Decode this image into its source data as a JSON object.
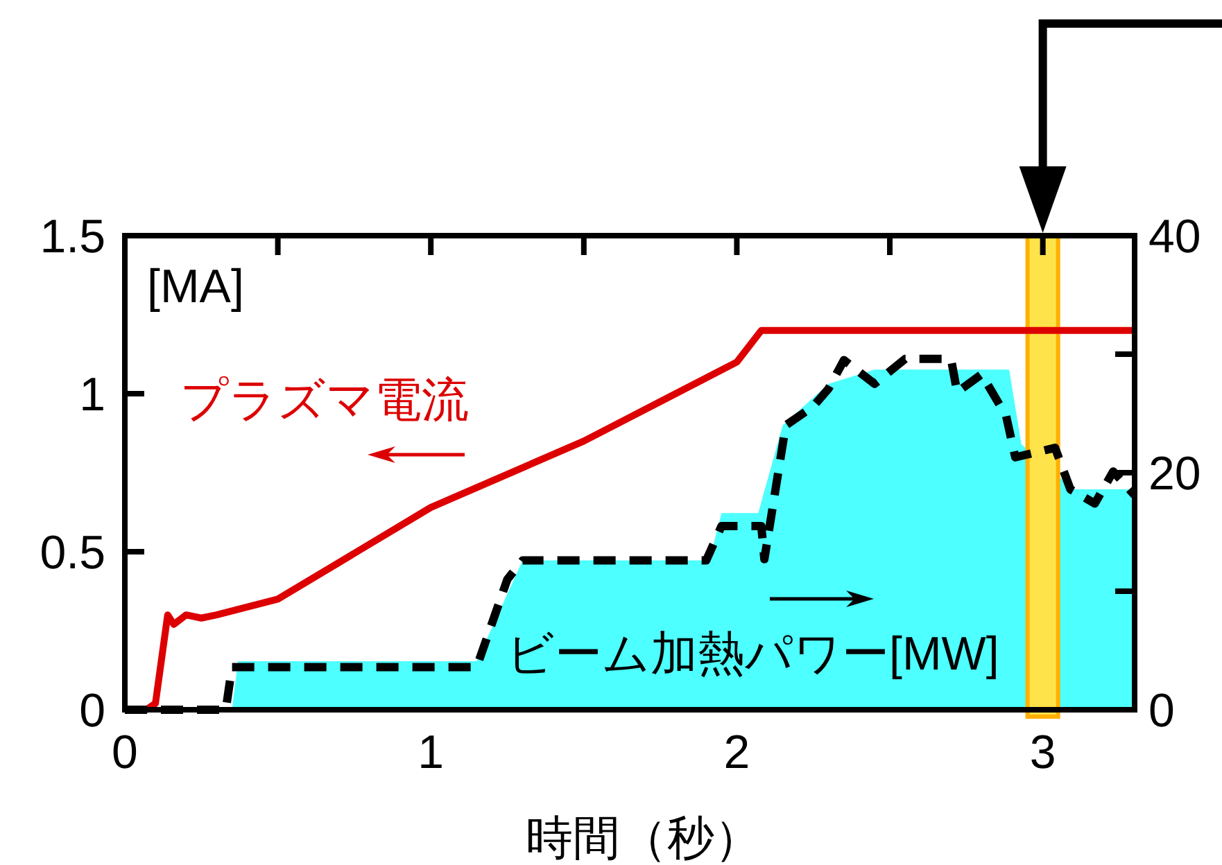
{
  "chart_data": {
    "type": "line",
    "xlabel": "時間（秒）",
    "ylabel": "[MA]",
    "xlim": [
      0,
      3.3
    ],
    "xticks": [
      0,
      {
        "value": 0.5,
        "label": null
      },
      1,
      {
        "value": 1.5,
        "label": null
      },
      2,
      {
        "value": 2.5,
        "label": null
      },
      3
    ],
    "ylim": [
      0,
      1.5
    ],
    "yticks": [
      0,
      0.5,
      1,
      1.5
    ],
    "y2lim": [
      0,
      40
    ],
    "y2ticks": [
      0,
      {
        "value": 10,
        "label": null
      },
      20,
      {
        "value": 30,
        "label": null
      },
      40
    ],
    "bands": [
      {
        "axis": "x",
        "from": 2.95,
        "to": 3.05,
        "color": "#ffe34a"
      }
    ],
    "series": [
      {
        "type": "area",
        "axis": "y2",
        "color": "#4dffff",
        "x": [
          0.35,
          0.37,
          1.15,
          1.3,
          1.91,
          1.95,
          2.07,
          2.15,
          2.3,
          2.45,
          2.89,
          2.93,
          3.1,
          3.3
        ],
        "values": [
          0,
          4.1,
          4.1,
          12.6,
          12.6,
          16.6,
          16.6,
          24,
          27.5,
          28.7,
          28.7,
          22.4,
          18.6,
          18.6
        ]
      },
      {
        "name": "プラズマ電流",
        "color": "#dd0000",
        "line_style": "solid",
        "x": [
          0,
          0.07,
          0.1,
          0.14,
          0.16,
          0.2,
          0.25,
          0.3,
          0.5,
          1.0,
          1.5,
          1.8,
          2.0,
          2.08,
          3.3
        ],
        "values": [
          0,
          0,
          0.02,
          0.3,
          0.27,
          0.3,
          0.29,
          0.3,
          0.35,
          0.64,
          0.85,
          1.0,
          1.1,
          1.2,
          1.2
        ]
      },
      {
        "name": "ビーム加熱パワー[MW]",
        "axis": "y2",
        "color": "#000000",
        "line_style": "dashed",
        "x": [
          0,
          0.33,
          0.35,
          1.15,
          1.25,
          1.3,
          1.9,
          1.95,
          2.08,
          2.09,
          2.16,
          2.25,
          2.3,
          2.35,
          2.45,
          2.55,
          2.7,
          2.72,
          2.8,
          2.88,
          2.91,
          3.04,
          3.09,
          3.17,
          3.23,
          3.3
        ],
        "values": [
          0,
          0,
          3.6,
          3.6,
          11,
          12.6,
          12.6,
          15.5,
          15.5,
          12.7,
          24,
          25.6,
          27.1,
          29.5,
          27.5,
          29.6,
          29.6,
          26.8,
          28.3,
          24.8,
          21.3,
          22.1,
          18.6,
          17.4,
          20.1,
          18.1
        ]
      }
    ]
  }
}
